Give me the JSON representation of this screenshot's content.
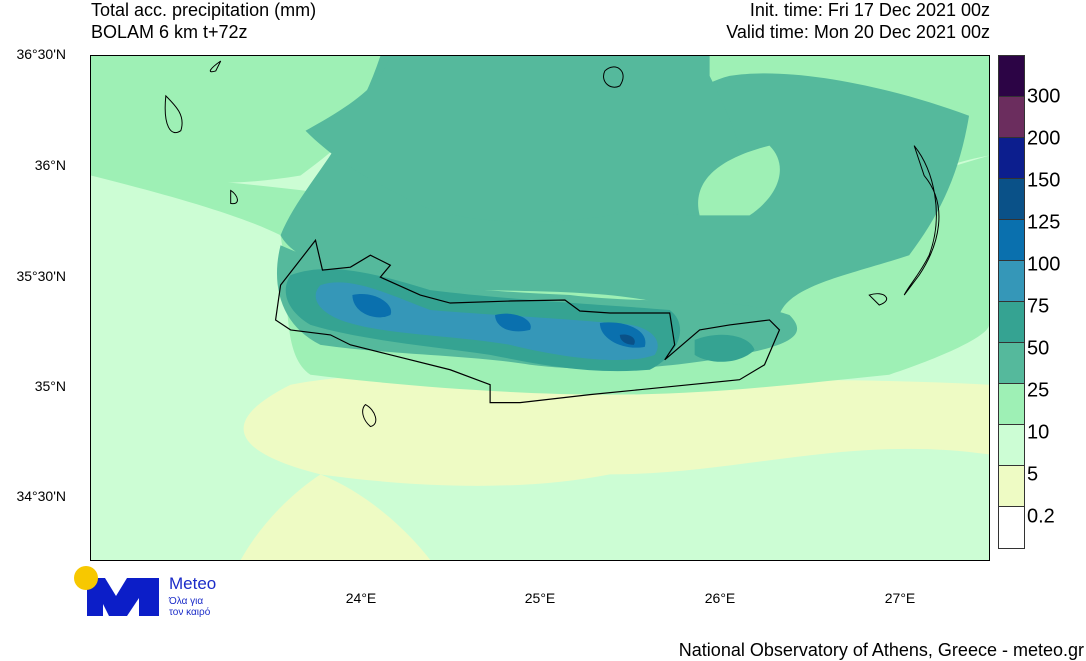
{
  "header": {
    "title_line1": "Total acc. precipitation (mm)",
    "title_line2": "BOLAM 6 km t+72z",
    "init_time": "Init. time: Fri 17 Dec 2021 00z",
    "valid_time": "Valid time: Mon 20 Dec 2021 00z"
  },
  "map": {
    "lat_labels": [
      "36°30'N",
      "36°N",
      "35°30'N",
      "35°N",
      "34°30'N"
    ],
    "lon_labels": [
      "24°E",
      "25°E",
      "26°E",
      "27°E"
    ]
  },
  "legend": {
    "labels": [
      "300",
      "200",
      "150",
      "125",
      "100",
      "75",
      "50",
      "25",
      "10",
      "5",
      "0.2"
    ],
    "colors": [
      "#2c0445",
      "#6b2d5e",
      "#0c1e8e",
      "#0a5188",
      "#0a70ae",
      "#3597b8",
      "#35a392",
      "#55b99c",
      "#9ef0b5",
      "#ccfdd4",
      "#eefbc4",
      "#ffffff"
    ]
  },
  "logo": {
    "name": "Meteo",
    "tagline1": "Όλα για",
    "tagline2": "τον καιρό"
  },
  "footer": {
    "credit": "National Observatory of Athens, Greece - meteo.gr"
  }
}
